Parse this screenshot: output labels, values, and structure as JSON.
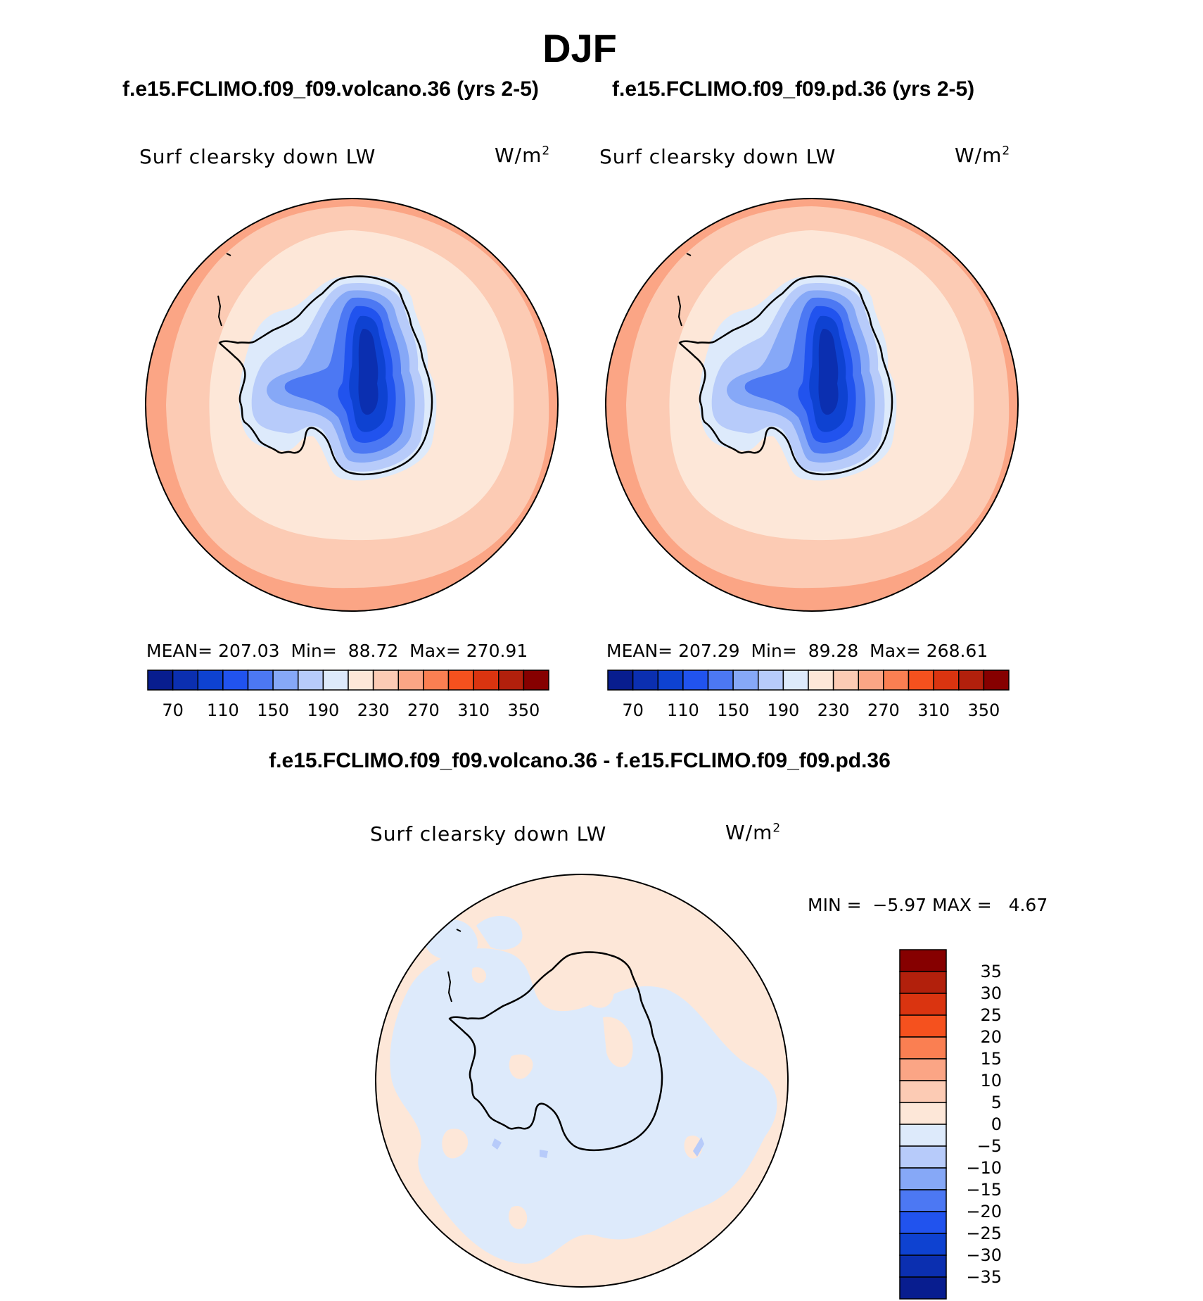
{
  "figure": {
    "title": "DJF"
  },
  "panels": [
    {
      "case_title": "f.e15.FCLIMO.f09_f09.volcano.36 (yrs 2-5)",
      "variable": "Surf clearsky down LW",
      "units": "W/m",
      "units_exp": "2",
      "stats": {
        "mean_label": "MEAN=",
        "mean": "207.03",
        "min_label": "Min=",
        "min": "88.72",
        "max_label": "Max=",
        "max": "270.91"
      }
    },
    {
      "case_title": "f.e15.FCLIMO.f09_f09.pd.36 (yrs 2-5)",
      "variable": "Surf clearsky down LW",
      "units": "W/m",
      "units_exp": "2",
      "stats": {
        "mean_label": "MEAN=",
        "mean": "207.29",
        "min_label": "Min=",
        "min": "89.28",
        "max_label": "Max=",
        "max": "268.61"
      }
    }
  ],
  "difference": {
    "title": "f.e15.FCLIMO.f09_f09.volcano.36 - f.e15.FCLIMO.f09_f09.pd.36",
    "variable": "Surf clearsky down LW",
    "units": "W/m",
    "units_exp": "2",
    "stats": {
      "min_label": "MIN =",
      "min": "−5.97",
      "max_label": "MAX =",
      "max": "4.67"
    }
  },
  "colorbars": {
    "abs": {
      "colors": [
        "#081d8f",
        "#0b2fb0",
        "#0e42d1",
        "#2153ee",
        "#4c78f3",
        "#86a8f7",
        "#b7cbfa",
        "#ddeafb",
        "#fde7d8",
        "#fccbb4",
        "#fba585",
        "#fa7f52",
        "#f5511e",
        "#da3410",
        "#b2200c",
        "#860000"
      ],
      "tick_labels": [
        "70",
        "110",
        "150",
        "190",
        "230",
        "270",
        "310",
        "350"
      ]
    },
    "diff": {
      "colors": [
        "#081d8f",
        "#0b2fb0",
        "#0e42d1",
        "#2153ee",
        "#4c78f3",
        "#86a8f7",
        "#b7cbfa",
        "#ddeafb",
        "#fde7d8",
        "#fccbb4",
        "#fba585",
        "#fa7f52",
        "#f5511e",
        "#da3410",
        "#b2200c",
        "#860000"
      ],
      "tick_labels": [
        "35",
        "30",
        "25",
        "20",
        "15",
        "10",
        "5",
        "0",
        "−5",
        "−10",
        "−15",
        "−20",
        "−25",
        "−30",
        "−35"
      ]
    }
  },
  "chart_data": [
    {
      "type": "heatmap",
      "title": "f.e15.FCLIMO.f09_f09.volcano.36 (yrs 2-5)",
      "projection": "south polar stereographic",
      "field": "Surf clearsky down LW",
      "units": "W/m2",
      "levels": [
        70,
        90,
        110,
        130,
        150,
        170,
        190,
        210,
        230,
        250,
        270,
        290,
        310,
        330,
        350
      ],
      "mean": 207.03,
      "min": 88.72,
      "max": 270.91
    },
    {
      "type": "heatmap",
      "title": "f.e15.FCLIMO.f09_f09.pd.36 (yrs 2-5)",
      "projection": "south polar stereographic",
      "field": "Surf clearsky down LW",
      "units": "W/m2",
      "levels": [
        70,
        90,
        110,
        130,
        150,
        170,
        190,
        210,
        230,
        250,
        270,
        290,
        310,
        330,
        350
      ],
      "mean": 207.29,
      "min": 89.28,
      "max": 268.61
    },
    {
      "type": "heatmap",
      "title": "f.e15.FCLIMO.f09_f09.volcano.36 - f.e15.FCLIMO.f09_f09.pd.36",
      "projection": "south polar stereographic",
      "field": "Surf clearsky down LW",
      "units": "W/m2",
      "levels": [
        -35,
        -30,
        -25,
        -20,
        -15,
        -10,
        -5,
        0,
        5,
        10,
        15,
        20,
        25,
        30,
        35
      ],
      "min": -5.97,
      "max": 4.67
    }
  ]
}
